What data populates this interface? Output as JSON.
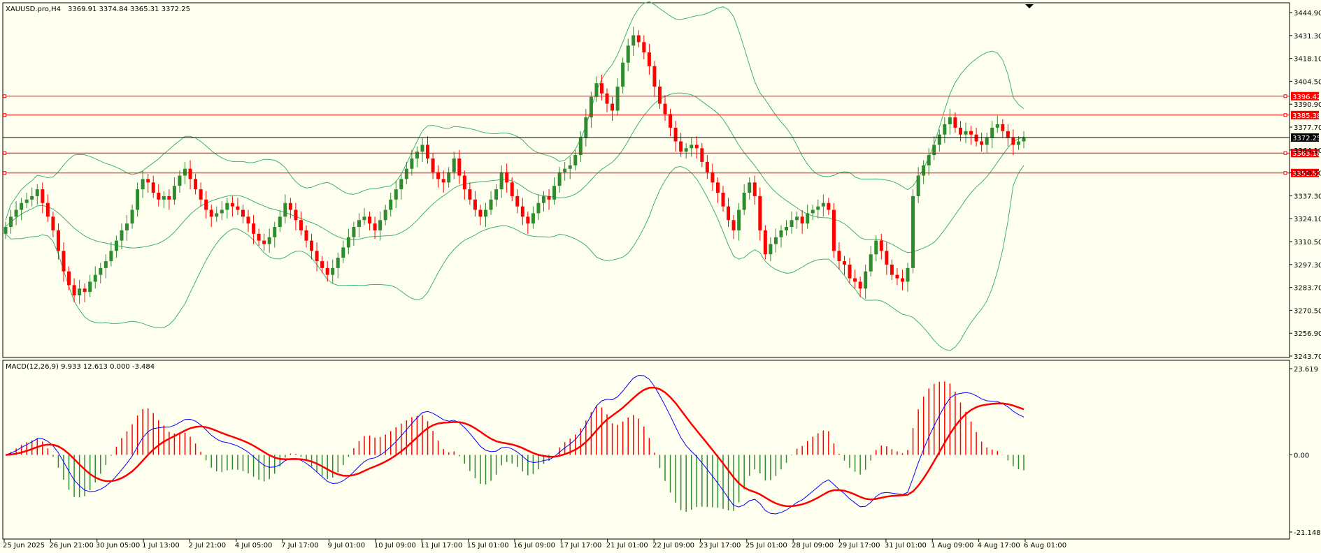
{
  "header": {
    "symbol": "XAUUSD.pro,H4",
    "ohlc": "3369.91 3374.84 3365.31 3372.25"
  },
  "macd_header": "MACD(12,26,9) 9.933 12.613 0.000 -3.484",
  "price_axis": [
    "3444.90",
    "3431.30",
    "3418.10",
    "3404.50",
    "3390.90",
    "3377.70",
    "3364.10",
    "3350.50",
    "3337.30",
    "3324.10",
    "3310.50",
    "3297.30",
    "3283.70",
    "3270.50",
    "3256.90",
    "3243.70"
  ],
  "macd_axis": [
    "23.619",
    "0.00",
    "-21.148"
  ],
  "time_axis": [
    "25 Jun 2025",
    "26 Jun 21:00",
    "30 Jun 05:00",
    "1 Jul 13:00",
    "2 Jul 21:00",
    "4 Jul 05:00",
    "7 Jul 17:00",
    "9 Jul 01:00",
    "10 Jul 09:00",
    "11 Jul 17:00",
    "15 Jul 01:00",
    "16 Jul 09:00",
    "17 Jul 17:00",
    "21 Jul 01:00",
    "22 Jul 09:00",
    "23 Jul 17:00",
    "25 Jul 01:00",
    "28 Jul 09:00",
    "29 Jul 17:00",
    "31 Jul 01:00",
    "1 Aug 09:00",
    "4 Aug 17:00",
    "6 Aug 01:00"
  ],
  "levels": [
    {
      "value": 3396.42,
      "label": "3396.42",
      "color": "#ff0000"
    },
    {
      "value": 3385.38,
      "label": "3385.38",
      "color": "#ff0000"
    },
    {
      "value": 3372.25,
      "label": "3372.25",
      "color": "#000000"
    },
    {
      "value": 3363.18,
      "label": "3363.18",
      "color": "#ff0000"
    },
    {
      "value": 3351.52,
      "label": "3351.52",
      "color": "#ff0000"
    }
  ],
  "colors": {
    "bull": "#2e8b2e",
    "bear": "#ff0000",
    "band": "#3cb371",
    "macd": "#0000ff",
    "signal": "#ff0000",
    "background": "#fffff0"
  },
  "chart_data": {
    "type": "candlestick",
    "price_range": [
      3243.7,
      3451.0
    ],
    "macd_range": [
      -21.148,
      23.619
    ],
    "closes": [
      3320,
      3326,
      3330,
      3334,
      3336,
      3338,
      3342,
      3334,
      3326,
      3318,
      3306,
      3294,
      3286,
      3280,
      3284,
      3282,
      3288,
      3292,
      3296,
      3300,
      3306,
      3312,
      3318,
      3322,
      3330,
      3342,
      3348,
      3346,
      3340,
      3336,
      3338,
      3336,
      3344,
      3350,
      3354,
      3348,
      3342,
      3336,
      3330,
      3326,
      3328,
      3330,
      3334,
      3332,
      3330,
      3326,
      3322,
      3316,
      3312,
      3310,
      3314,
      3320,
      3326,
      3334,
      3330,
      3324,
      3318,
      3312,
      3306,
      3300,
      3296,
      3292,
      3296,
      3302,
      3308,
      3314,
      3320,
      3324,
      3326,
      3322,
      3318,
      3324,
      3330,
      3336,
      3342,
      3348,
      3354,
      3360,
      3364,
      3368,
      3360,
      3352,
      3348,
      3346,
      3352,
      3360,
      3350,
      3342,
      3336,
      3330,
      3326,
      3330,
      3336,
      3342,
      3352,
      3346,
      3338,
      3332,
      3326,
      3322,
      3328,
      3334,
      3338,
      3336,
      3344,
      3352,
      3354,
      3356,
      3362,
      3372,
      3384,
      3396,
      3404,
      3398,
      3392,
      3388,
      3402,
      3416,
      3426,
      3432,
      3428,
      3422,
      3414,
      3402,
      3392,
      3386,
      3378,
      3370,
      3364,
      3366,
      3368,
      3366,
      3358,
      3352,
      3346,
      3340,
      3332,
      3324,
      3318,
      3330,
      3340,
      3346,
      3338,
      3318,
      3304,
      3310,
      3314,
      3318,
      3320,
      3324,
      3326,
      3322,
      3328,
      3330,
      3332,
      3334,
      3330,
      3306,
      3300,
      3298,
      3290,
      3288,
      3284,
      3294,
      3304,
      3312,
      3306,
      3298,
      3292,
      3290,
      3288,
      3296,
      3338,
      3350,
      3356,
      3362,
      3368,
      3374,
      3380,
      3384,
      3378,
      3374,
      3376,
      3374,
      3370,
      3368,
      3372,
      3378,
      3380,
      3376,
      3372,
      3368,
      3370,
      3372
    ]
  }
}
